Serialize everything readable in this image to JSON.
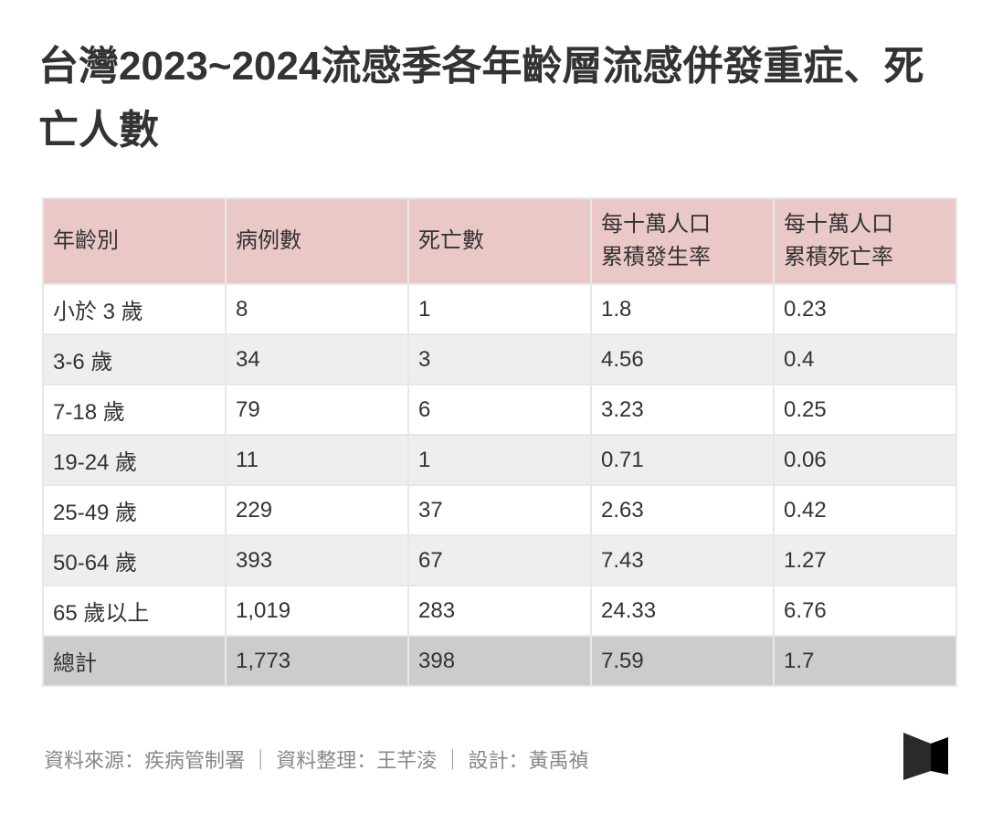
{
  "title": "台灣2023~2024流感季各年齡層流感併發重症、死亡人數",
  "headers": [
    "年齡別",
    "病例數",
    "死亡數",
    "每十萬人口累積發生率",
    "每十萬人口累積死亡率"
  ],
  "rows": [
    [
      "小於 3 歲",
      "8",
      "1",
      "1.8",
      "0.23"
    ],
    [
      "3-6 歲",
      "34",
      "3",
      "4.56",
      "0.4"
    ],
    [
      "7-18 歲",
      "79",
      "6",
      "3.23",
      "0.25"
    ],
    [
      "19-24 歲",
      "11",
      "1",
      "0.71",
      "0.06"
    ],
    [
      "25-49 歲",
      "229",
      "37",
      "2.63",
      "0.42"
    ],
    [
      "50-64 歲",
      "393",
      "67",
      "7.43",
      "1.27"
    ],
    [
      "65 歲以上",
      "1,019",
      "283",
      "24.33",
      "6.76"
    ]
  ],
  "total": [
    "總計",
    "1,773",
    "398",
    "7.59",
    "1.7"
  ],
  "footer": "資料來源：疾病管制署 ｜ 資料整理：王芊淩 ｜ 設計：黃禹禎",
  "colors": {
    "header": "#ebc8c8",
    "alt_row": "#eeeeee",
    "total_row": "#cccccc"
  }
}
